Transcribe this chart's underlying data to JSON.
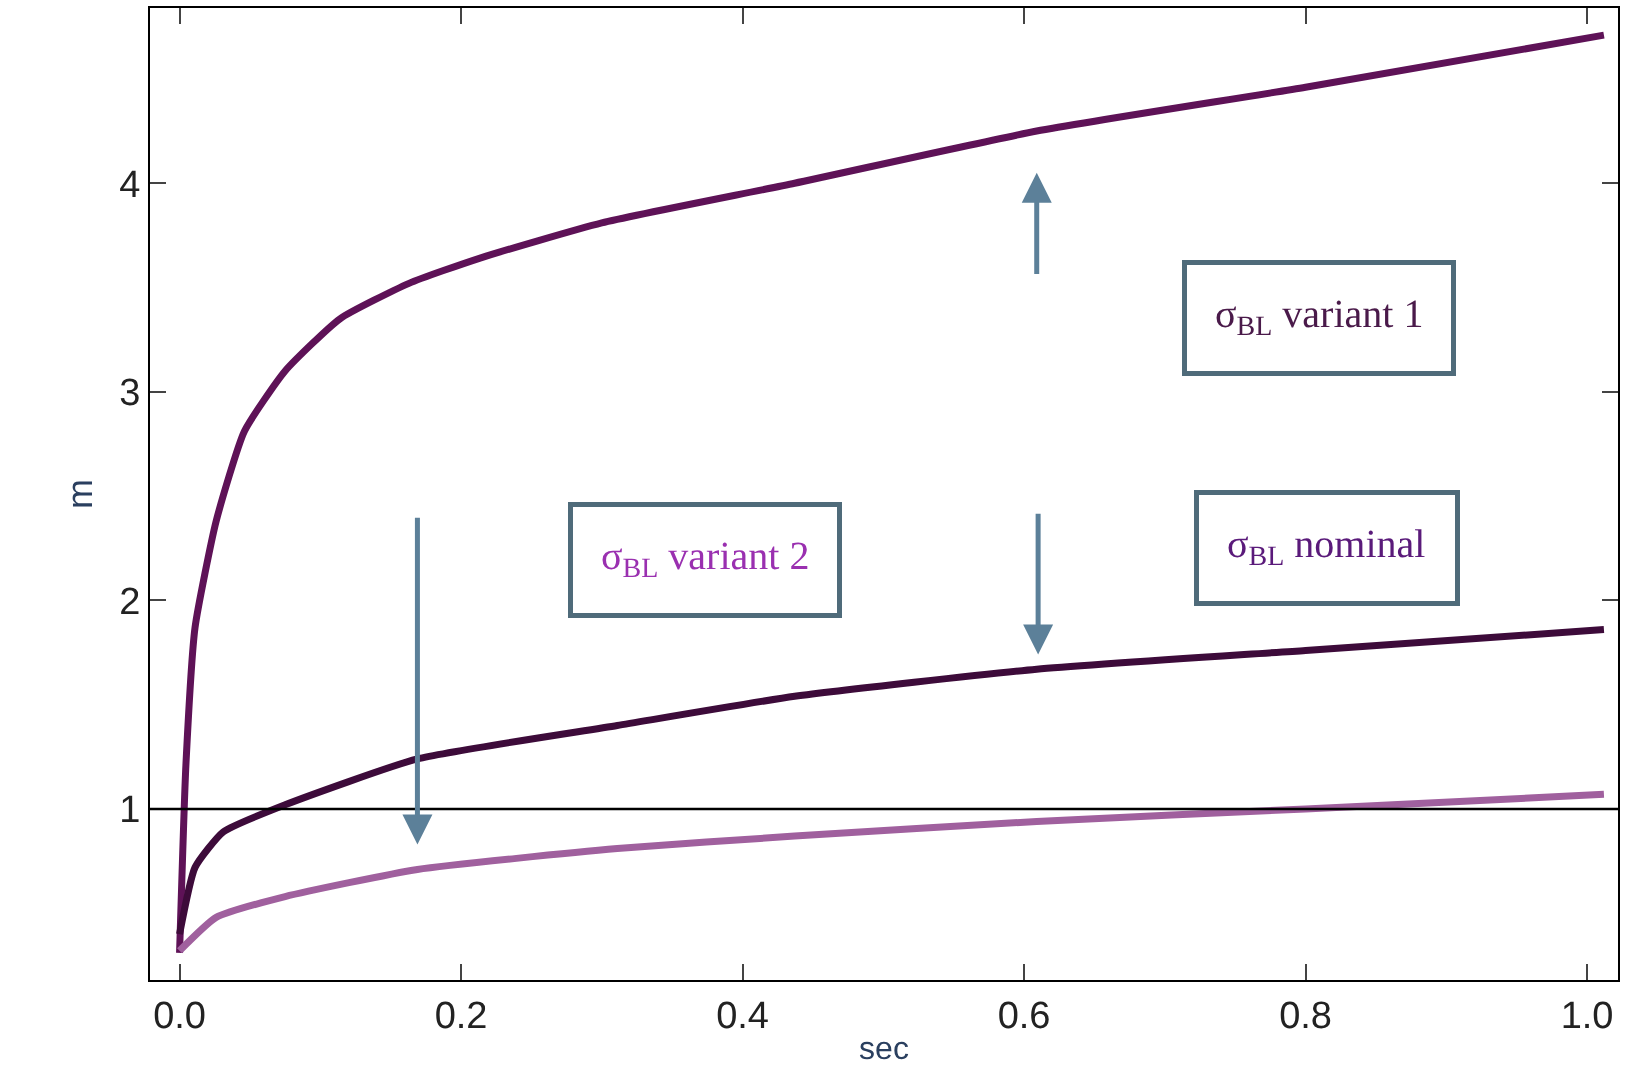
{
  "chart_data": {
    "type": "line",
    "xlabel": "sec",
    "ylabel": "m",
    "xlim": [
      -0.021,
      1.022
    ],
    "ylim": [
      0.18,
      4.84
    ],
    "xticks": [
      {
        "value": 0,
        "label": "0.0"
      },
      {
        "value": 0.2,
        "label": "0.2"
      },
      {
        "value": 0.4,
        "label": "0.4"
      },
      {
        "value": 0.6,
        "label": "0.6"
      },
      {
        "value": 0.8,
        "label": "0.8"
      },
      {
        "value": 1,
        "label": "1.0"
      }
    ],
    "yticks": [
      1,
      2,
      3,
      4
    ],
    "marker": "none",
    "line_style": "solid",
    "series": [
      {
        "color": "#5e1257",
        "x": [
          0,
          0.0045,
          0.011,
          0.026,
          0.046,
          0.075,
          0.114,
          0.163,
          0.213,
          0.3,
          0.437,
          0.609,
          0.8,
          1.012
        ],
        "values": [
          0.31,
          1.21,
          1.87,
          2.38,
          2.81,
          3.1,
          3.35,
          3.52,
          3.64,
          3.81,
          4.0,
          4.25,
          4.46,
          4.71
        ]
      },
      {
        "color": "#3d0b3a",
        "x": [
          0,
          0.011,
          0.031,
          0.075,
          0.169,
          0.311,
          0.437,
          0.609,
          0.8,
          1.012
        ],
        "values": [
          0.4,
          0.72,
          0.89,
          1.02,
          1.24,
          1.4,
          1.54,
          1.67,
          1.76,
          1.86
        ]
      },
      {
        "color": "#a0609e",
        "x": [
          0,
          0.026,
          0.075,
          0.169,
          0.311,
          0.437,
          0.609,
          0.8,
          1.012
        ],
        "values": [
          0.32,
          0.48,
          0.58,
          0.71,
          0.81,
          0.87,
          0.94,
          1.0,
          1.07
        ]
      }
    ],
    "ref_lines": [
      {
        "axis": "y",
        "value": 1,
        "color": "#000000"
      }
    ],
    "annotations": [
      "σ$_{BL}$ variant 1",
      "σ$_{BL}$ nominal",
      "σ$_{BL}$ variant 2"
    ]
  }
}
